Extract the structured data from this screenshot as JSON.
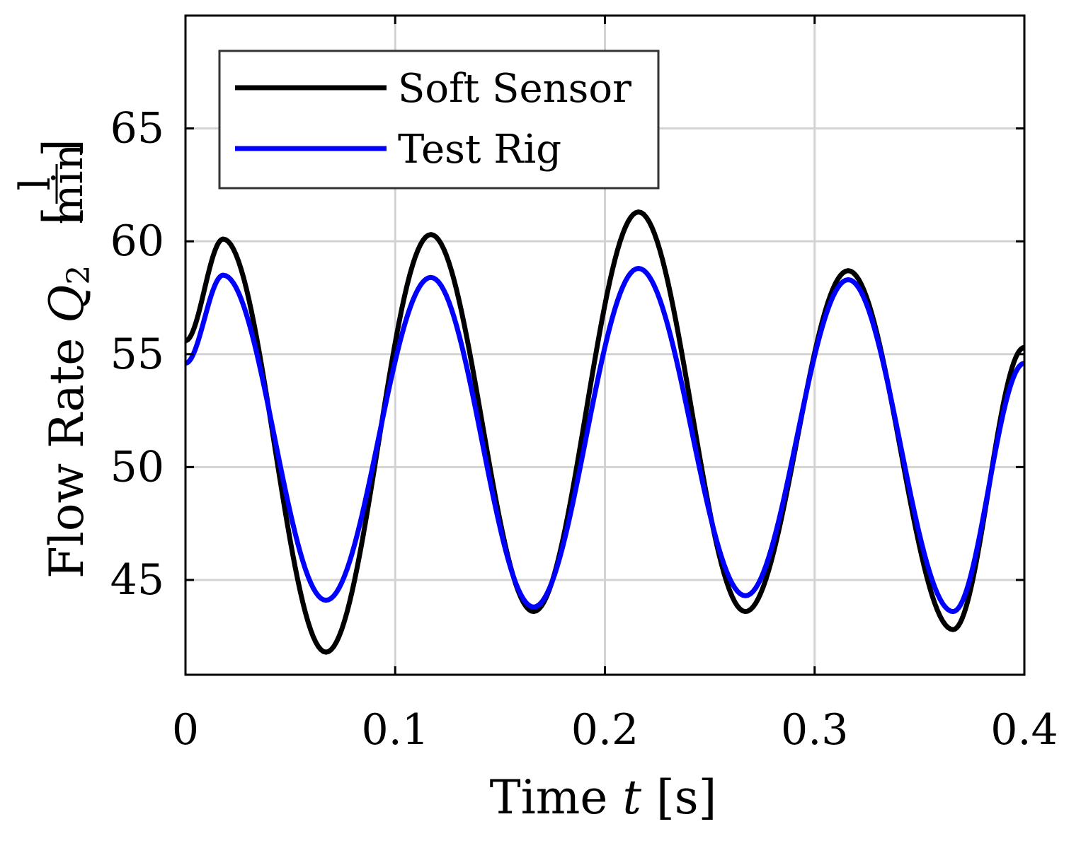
{
  "chart_data": {
    "type": "line",
    "title": "",
    "xlabel": {
      "prefix": "Time ",
      "symbol": "t",
      "unit": " [s]"
    },
    "ylabel": {
      "prefix": "Flow Rate ",
      "symbol": "Q",
      "subscript": "2",
      "unit_open": "[",
      "unit_numerator": "l",
      "unit_denominator": "min",
      "unit_close": "]"
    },
    "xlim": [
      0,
      0.4
    ],
    "ylim": [
      40.8,
      70
    ],
    "xticks": [
      0,
      0.1,
      0.2,
      0.3,
      0.4
    ],
    "xtick_labels": [
      "0",
      "0.1",
      "0.2",
      "0.3",
      "0.4"
    ],
    "yticks": [
      45,
      50,
      55,
      60,
      65
    ],
    "ytick_labels": [
      "45",
      "50",
      "55",
      "60",
      "65"
    ],
    "grid": true,
    "legend_position": "top-left",
    "colors": {
      "soft_sensor": "#000000",
      "test_rig": "#0000ff",
      "grid": "#d3d3d3",
      "axes": "#000000"
    },
    "series": [
      {
        "name": "Soft Sensor",
        "color": "#000000",
        "x": [
          0,
          0.018,
          0.067,
          0.117,
          0.166,
          0.216,
          0.267,
          0.316,
          0.366,
          0.4
        ],
        "y": [
          55.6,
          60.1,
          41.8,
          60.3,
          43.6,
          61.3,
          43.6,
          58.7,
          42.8,
          55.3
        ]
      },
      {
        "name": "Test Rig",
        "color": "#0000ff",
        "x": [
          0,
          0.018,
          0.067,
          0.117,
          0.166,
          0.216,
          0.267,
          0.316,
          0.366,
          0.4
        ],
        "y": [
          54.6,
          58.5,
          44.1,
          58.4,
          43.8,
          58.8,
          44.3,
          58.3,
          43.6,
          54.6
        ]
      }
    ]
  }
}
